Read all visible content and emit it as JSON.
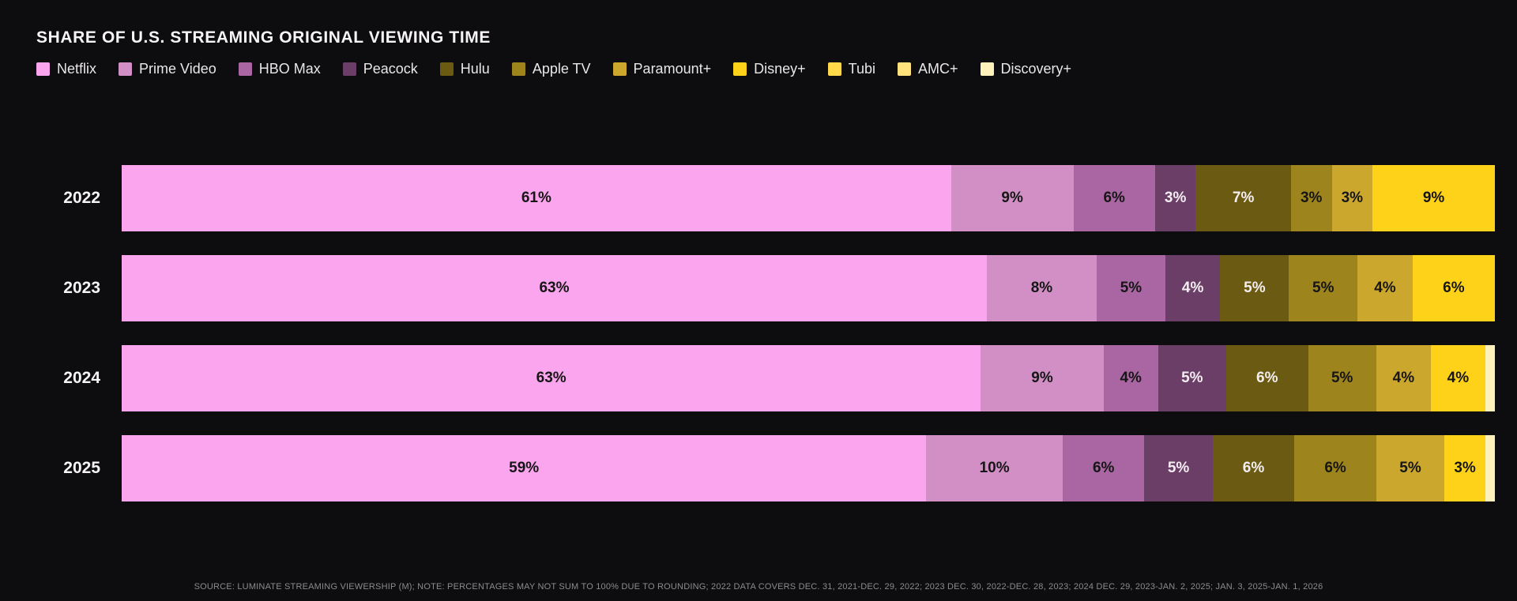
{
  "title": "SHARE OF U.S. STREAMING ORIGINAL VIEWING TIME",
  "source_note": "SOURCE: LUMINATE STREAMING VIEWERSHIP (M); NOTE: PERCENTAGES MAY NOT SUM TO 100% DUE TO ROUNDING; 2022 DATA COVERS DEC. 31, 2021-DEC. 29, 2022; 2023 DEC. 30, 2022-DEC. 28, 2023; 2024 DEC. 29, 2023-JAN. 2, 2025; JAN. 3, 2025-JAN. 1, 2026",
  "colors": {
    "background": "#0D0D0F",
    "title_text": "#F7F4F6",
    "segment_label_dark": "#161616",
    "segment_label_light": "#F4EEF2",
    "footer_text": "#8D8A8D"
  },
  "chart_data": {
    "type": "bar",
    "orientation": "horizontal",
    "stacked": true,
    "unit": "%",
    "title": "SHARE OF U.S. STREAMING ORIGINAL VIEWING TIME",
    "legend_position": "top",
    "categories": [
      "2022",
      "2023",
      "2024",
      "2025"
    ],
    "legend": [
      {
        "name": "Netflix",
        "color": "#FAA5ED"
      },
      {
        "name": "Prime Video",
        "color": "#D28FC5"
      },
      {
        "name": "HBO Max",
        "color": "#AA66A3"
      },
      {
        "name": "Peacock",
        "color": "#6A3E66"
      },
      {
        "name": "Hulu",
        "color": "#6B5A11"
      },
      {
        "name": "Apple TV",
        "color": "#9D841C"
      },
      {
        "name": "Paramount+",
        "color": "#CCA72E"
      },
      {
        "name": "Disney+",
        "color": "#FFD21A"
      },
      {
        "name": "Tubi",
        "color": "#FFD94A"
      },
      {
        "name": "AMC+",
        "color": "#FFE27B"
      },
      {
        "name": "Discovery+",
        "color": "#FFF1BC"
      }
    ],
    "light_text_segments": [
      "Peacock",
      "Hulu"
    ],
    "rows": [
      {
        "year": "2022",
        "segments": [
          {
            "name": "Netflix",
            "value": 61,
            "label": "61%"
          },
          {
            "name": "Prime Video",
            "value": 9,
            "label": "9%"
          },
          {
            "name": "HBO Max",
            "value": 6,
            "label": "6%"
          },
          {
            "name": "Peacock",
            "value": 3,
            "label": "3%"
          },
          {
            "name": "Hulu",
            "value": 7,
            "label": "7%"
          },
          {
            "name": "Apple TV",
            "value": 3,
            "label": "3%"
          },
          {
            "name": "Paramount+",
            "value": 3,
            "label": "3%"
          },
          {
            "name": "Disney+",
            "value": 9,
            "label": "9%"
          }
        ]
      },
      {
        "year": "2023",
        "segments": [
          {
            "name": "Netflix",
            "value": 63,
            "label": "63%"
          },
          {
            "name": "Prime Video",
            "value": 8,
            "label": "8%"
          },
          {
            "name": "HBO Max",
            "value": 5,
            "label": "5%"
          },
          {
            "name": "Peacock",
            "value": 4,
            "label": "4%"
          },
          {
            "name": "Hulu",
            "value": 5,
            "label": "5%"
          },
          {
            "name": "Apple TV",
            "value": 5,
            "label": "5%"
          },
          {
            "name": "Paramount+",
            "value": 4,
            "label": "4%"
          },
          {
            "name": "Disney+",
            "value": 6,
            "label": "6%"
          }
        ]
      },
      {
        "year": "2024",
        "segments": [
          {
            "name": "Netflix",
            "value": 63,
            "label": "63%"
          },
          {
            "name": "Prime Video",
            "value": 9,
            "label": "9%"
          },
          {
            "name": "HBO Max",
            "value": 4,
            "label": "4%"
          },
          {
            "name": "Peacock",
            "value": 5,
            "label": "5%"
          },
          {
            "name": "Hulu",
            "value": 6,
            "label": "6%"
          },
          {
            "name": "Apple TV",
            "value": 5,
            "label": "5%"
          },
          {
            "name": "Paramount+",
            "value": 4,
            "label": "4%"
          },
          {
            "name": "Disney+",
            "value": 4,
            "label": "4%"
          },
          {
            "name": "Discovery+",
            "value": 0.7,
            "label": ""
          }
        ]
      },
      {
        "year": "2025",
        "segments": [
          {
            "name": "Netflix",
            "value": 59,
            "label": "59%"
          },
          {
            "name": "Prime Video",
            "value": 10,
            "label": "10%"
          },
          {
            "name": "HBO Max",
            "value": 6,
            "label": "6%"
          },
          {
            "name": "Peacock",
            "value": 5,
            "label": "5%"
          },
          {
            "name": "Hulu",
            "value": 6,
            "label": "6%"
          },
          {
            "name": "Apple TV",
            "value": 6,
            "label": "6%"
          },
          {
            "name": "Paramount+",
            "value": 5,
            "label": "5%"
          },
          {
            "name": "Disney+",
            "value": 3,
            "label": "3%"
          },
          {
            "name": "Discovery+",
            "value": 0.7,
            "label": ""
          }
        ]
      }
    ]
  }
}
